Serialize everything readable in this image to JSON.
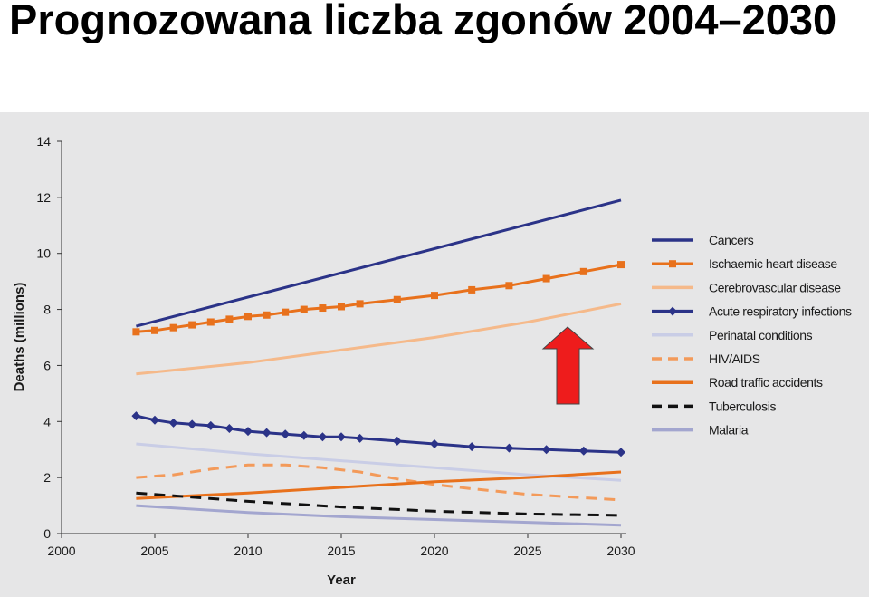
{
  "page": {
    "title": "Prognozowana liczba zgonów 2004–2030"
  },
  "chart_data": {
    "type": "line",
    "xlabel": "Year",
    "ylabel": "Deaths (millions)",
    "xlim": [
      2000,
      2030
    ],
    "ylim": [
      0,
      14
    ],
    "x_ticks": [
      "2000",
      "2005",
      "2010",
      "2015",
      "2020",
      "2025",
      "2030"
    ],
    "y_ticks": [
      "0",
      "2",
      "4",
      "6",
      "8",
      "10",
      "12",
      "14"
    ],
    "grid": false,
    "legend_position": "right",
    "series": [
      {
        "name": "Cancers",
        "color": "#2b3388",
        "style": "solid",
        "marker": "none",
        "x": [
          2004,
          2030
        ],
        "values": [
          7.4,
          11.9
        ]
      },
      {
        "name": "Ischaemic heart disease",
        "color": "#e8711c",
        "style": "solid",
        "marker": "square",
        "x": [
          2004,
          2005,
          2006,
          2007,
          2008,
          2009,
          2010,
          2011,
          2012,
          2013,
          2014,
          2015,
          2016,
          2018,
          2020,
          2022,
          2024,
          2026,
          2028,
          2030
        ],
        "values": [
          7.2,
          7.25,
          7.35,
          7.45,
          7.55,
          7.65,
          7.75,
          7.8,
          7.9,
          8.0,
          8.05,
          8.1,
          8.2,
          8.35,
          8.5,
          8.7,
          8.85,
          9.1,
          9.35,
          9.6
        ]
      },
      {
        "name": "Cerebrovascular disease",
        "color": "#f5b98a",
        "style": "solid",
        "marker": "none",
        "x": [
          2004,
          2010,
          2015,
          2020,
          2025,
          2030
        ],
        "values": [
          5.7,
          6.1,
          6.55,
          7.0,
          7.55,
          8.2
        ]
      },
      {
        "name": "Acute respiratory infections",
        "color": "#2b3388",
        "style": "solid",
        "marker": "diamond",
        "x": [
          2004,
          2005,
          2006,
          2007,
          2008,
          2009,
          2010,
          2011,
          2012,
          2013,
          2014,
          2015,
          2016,
          2018,
          2020,
          2022,
          2024,
          2026,
          2028,
          2030
        ],
        "values": [
          4.2,
          4.05,
          3.95,
          3.9,
          3.85,
          3.75,
          3.65,
          3.6,
          3.55,
          3.5,
          3.45,
          3.45,
          3.4,
          3.3,
          3.2,
          3.1,
          3.05,
          3.0,
          2.95,
          2.9
        ]
      },
      {
        "name": "Perinatal conditions",
        "color": "#c9cde6",
        "style": "solid",
        "marker": "none",
        "x": [
          2004,
          2010,
          2015,
          2020,
          2025,
          2030
        ],
        "values": [
          3.2,
          2.85,
          2.6,
          2.35,
          2.1,
          1.9
        ]
      },
      {
        "name": "HIV/AIDS",
        "color": "#f39a5a",
        "style": "dashed",
        "marker": "none",
        "x": [
          2004,
          2006,
          2008,
          2010,
          2012,
          2014,
          2016,
          2018,
          2020,
          2022,
          2025,
          2030
        ],
        "values": [
          2.0,
          2.1,
          2.3,
          2.45,
          2.45,
          2.35,
          2.2,
          1.95,
          1.75,
          1.6,
          1.4,
          1.2
        ]
      },
      {
        "name": "Road traffic accidents",
        "color": "#e8711c",
        "style": "solid",
        "marker": "none",
        "x": [
          2004,
          2010,
          2015,
          2020,
          2025,
          2030
        ],
        "values": [
          1.25,
          1.45,
          1.65,
          1.85,
          2.0,
          2.2
        ]
      },
      {
        "name": "Tuberculosis",
        "color": "#111111",
        "style": "dashed",
        "marker": "none",
        "x": [
          2004,
          2010,
          2015,
          2020,
          2025,
          2030
        ],
        "values": [
          1.45,
          1.15,
          0.95,
          0.8,
          0.7,
          0.65
        ]
      },
      {
        "name": "Malaria",
        "color": "#a3a6cf",
        "style": "solid",
        "marker": "none",
        "x": [
          2004,
          2010,
          2015,
          2020,
          2025,
          2030
        ],
        "values": [
          1.0,
          0.75,
          0.6,
          0.5,
          0.4,
          0.3
        ]
      }
    ]
  },
  "annotation": {
    "arrow_color": "#ee1c1c",
    "arrow_direction": "up"
  }
}
